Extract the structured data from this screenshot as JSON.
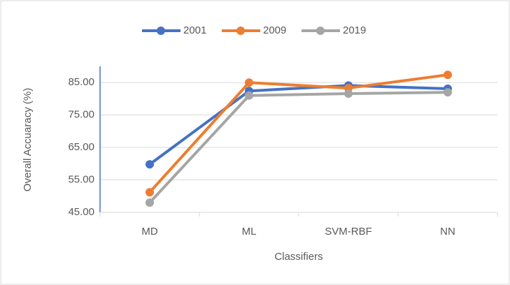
{
  "chart_data": {
    "type": "line",
    "categories": [
      "MD",
      "ML",
      "SVM-RBF",
      "NN"
    ],
    "series": [
      {
        "name": "2001",
        "color": "#4472c4",
        "values": [
          59.8,
          82.4,
          84.1,
          83.1
        ]
      },
      {
        "name": "2009",
        "color": "#ed7d31",
        "values": [
          51.2,
          85.0,
          83.3,
          87.4
        ]
      },
      {
        "name": "2019",
        "color": "#a5a5a5",
        "values": [
          48.0,
          81.0,
          81.6,
          82.0
        ]
      }
    ],
    "x_label": "Classifiers",
    "y_label": "Overall Accuaracy (%)",
    "ylim": [
      45,
      90
    ],
    "yticks": [
      {
        "value": 45,
        "label": "45.00"
      },
      {
        "value": 55,
        "label": "55.00"
      },
      {
        "value": 65,
        "label": "65.00"
      },
      {
        "value": 75,
        "label": "75.00"
      },
      {
        "value": 85,
        "label": "85.00"
      }
    ],
    "grid": true,
    "legend": "top"
  }
}
